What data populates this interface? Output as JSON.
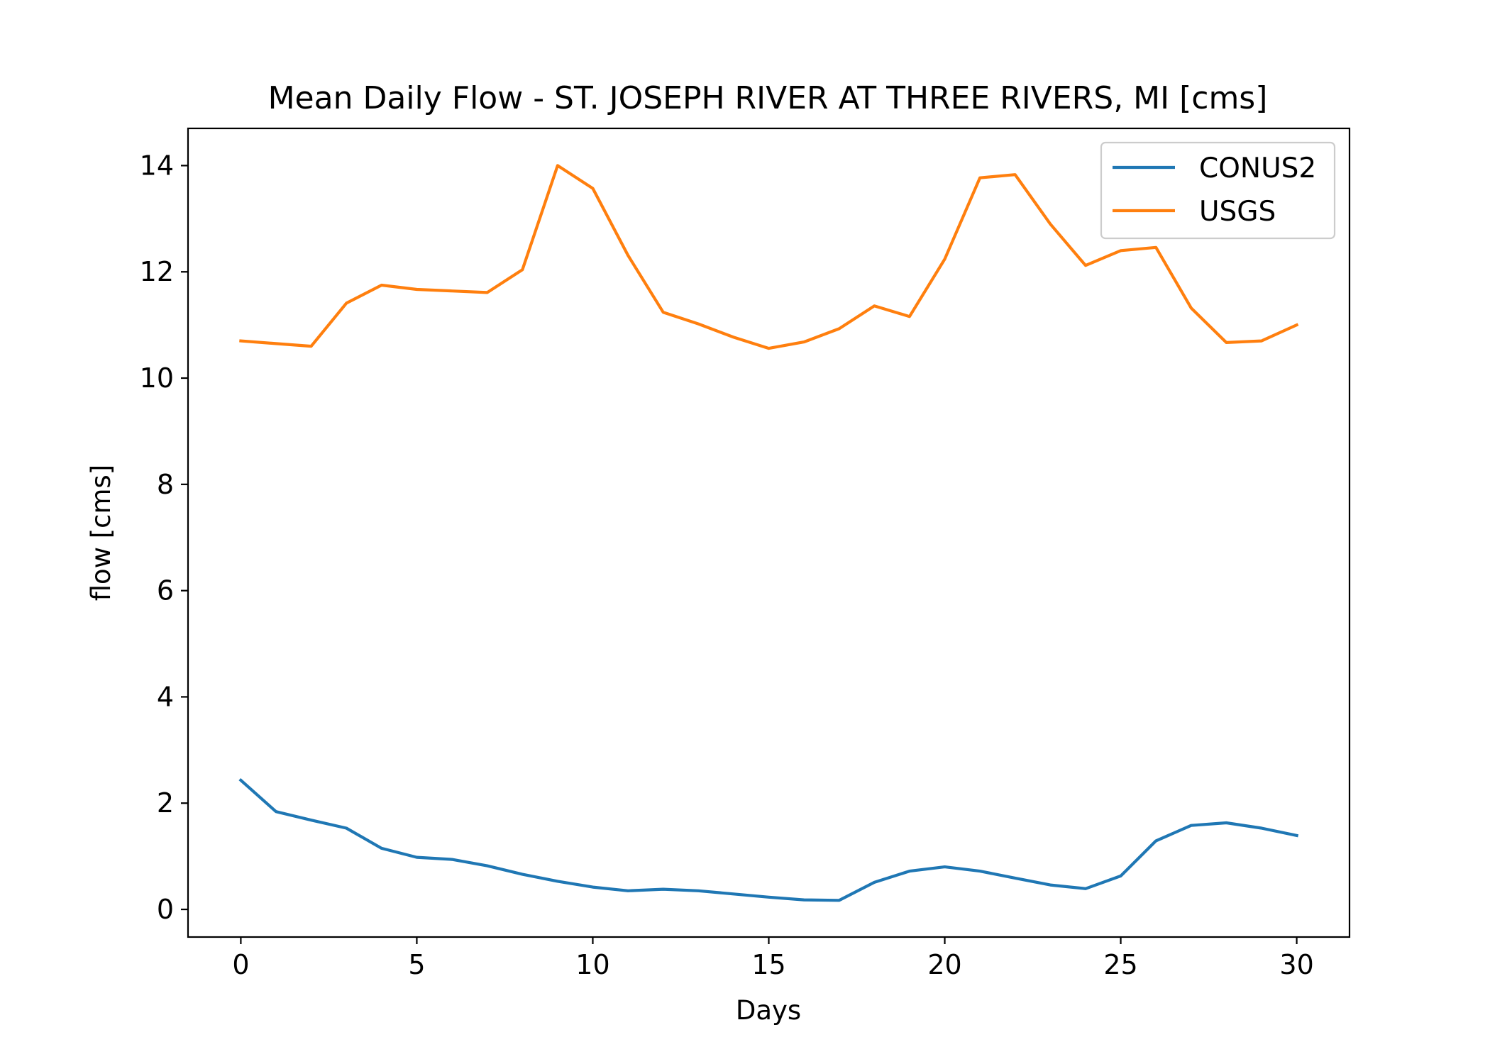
{
  "chart_data": {
    "type": "line",
    "title": "Mean Daily Flow - ST. JOSEPH RIVER AT THREE RIVERS, MI [cms]",
    "xlabel": "Days",
    "ylabel": "flow [cms]",
    "xlim": [
      -1.5,
      31.5
    ],
    "ylim": [
      -0.52,
      14.7
    ],
    "xticks": [
      0,
      5,
      10,
      15,
      20,
      25,
      30
    ],
    "yticks": [
      0,
      2,
      4,
      6,
      8,
      10,
      12,
      14
    ],
    "grid": false,
    "legend_position": "top-right",
    "x": [
      0,
      1,
      2,
      3,
      4,
      5,
      6,
      7,
      8,
      9,
      10,
      11,
      12,
      13,
      14,
      15,
      16,
      17,
      18,
      19,
      20,
      21,
      22,
      23,
      24,
      25,
      26,
      27,
      28,
      29,
      30
    ],
    "series": [
      {
        "name": "CONUS2",
        "color": "#1f77b4",
        "values": [
          2.43,
          1.84,
          1.68,
          1.53,
          1.15,
          0.98,
          0.94,
          0.82,
          0.66,
          0.53,
          0.42,
          0.35,
          0.38,
          0.35,
          0.29,
          0.23,
          0.18,
          0.17,
          0.51,
          0.72,
          0.8,
          0.72,
          0.59,
          0.46,
          0.39,
          0.63,
          1.29,
          1.58,
          1.63,
          1.53,
          1.39
        ]
      },
      {
        "name": "USGS",
        "color": "#ff7f0e",
        "values": [
          10.7,
          10.65,
          10.6,
          11.41,
          11.75,
          11.67,
          11.64,
          11.61,
          12.04,
          14.0,
          13.57,
          12.31,
          11.24,
          11.02,
          10.77,
          10.56,
          10.68,
          10.93,
          11.36,
          11.16,
          12.24,
          13.77,
          13.83,
          12.9,
          12.12,
          12.4,
          12.46,
          11.32,
          10.67,
          10.7,
          11.0
        ]
      }
    ]
  }
}
